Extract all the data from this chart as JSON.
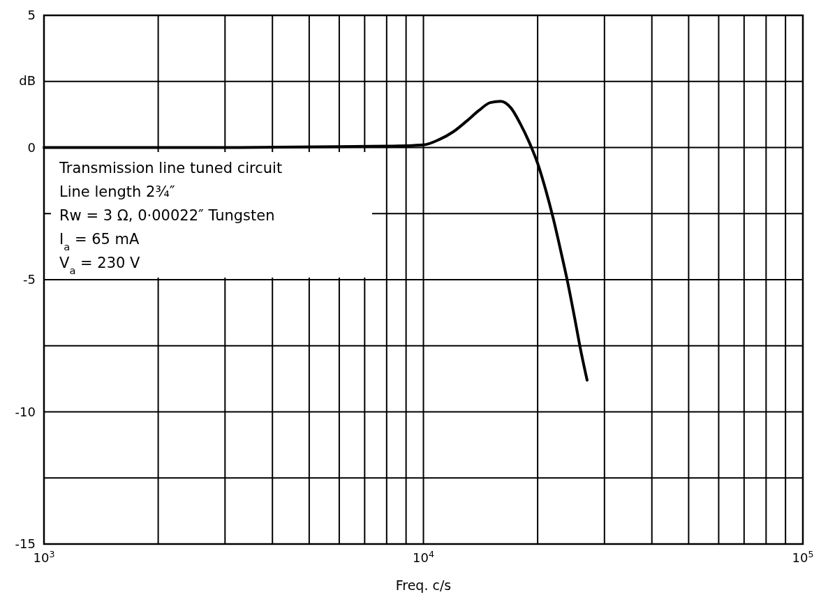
{
  "chart_data": {
    "type": "line",
    "xlabel": "Freq.  c/s",
    "ylabel": "dB",
    "log": "x",
    "grid": true,
    "marker": "none",
    "line_style": "solid",
    "xlim": [
      1000,
      100000
    ],
    "ylim": [
      -15,
      5
    ],
    "xticks": [
      {
        "value": 1000,
        "label": "10$^{3}$"
      },
      {
        "value": 2000,
        "label": null
      },
      {
        "value": 3000,
        "label": null
      },
      {
        "value": 4000,
        "label": null
      },
      {
        "value": 5000,
        "label": null
      },
      {
        "value": 6000,
        "label": null
      },
      {
        "value": 7000,
        "label": null
      },
      {
        "value": 8000,
        "label": null
      },
      {
        "value": 9000,
        "label": null
      },
      {
        "value": 10000,
        "label": "10$^{4}$"
      },
      {
        "value": 20000,
        "label": null
      },
      {
        "value": 30000,
        "label": null
      },
      {
        "value": 40000,
        "label": null
      },
      {
        "value": 50000,
        "label": null
      },
      {
        "value": 60000,
        "label": null
      },
      {
        "value": 70000,
        "label": null
      },
      {
        "value": 80000,
        "label": null
      },
      {
        "value": 90000,
        "label": null
      },
      {
        "value": 100000,
        "label": "10$^{5}$"
      }
    ],
    "yticks": [
      -15,
      {
        "value": -12.5,
        "label": null
      },
      -10,
      {
        "value": -7.5,
        "label": null
      },
      -5,
      {
        "value": -2.5,
        "label": null
      },
      0,
      {
        "value": 2.5,
        "label": null
      },
      5
    ],
    "x": [
      1000,
      3000,
      8000,
      10000,
      11000,
      12000,
      13000,
      14000,
      15000,
      16000,
      17000,
      18000,
      19000,
      20000,
      21000,
      22000,
      23000,
      24000,
      25000,
      26000,
      27000
    ],
    "series": [
      {
        "color": "#000000",
        "values": [
          0,
          0,
          0.05,
          0.1,
          0.3,
          0.6,
          1.0,
          1.4,
          1.7,
          1.75,
          1.5,
          0.9,
          0.2,
          -0.6,
          -1.6,
          -2.7,
          -3.9,
          -5.1,
          -6.4,
          -7.7,
          -8.8
        ]
      }
    ],
    "annotations": [
      "Transmission  line tuned circuit",
      "Line length  2¾″",
      "Rw = 3 Ω,  0·00022″ Tungsten",
      "I$_{a}$ = 65 mA",
      "V$_{a}$ =  230 V"
    ]
  }
}
